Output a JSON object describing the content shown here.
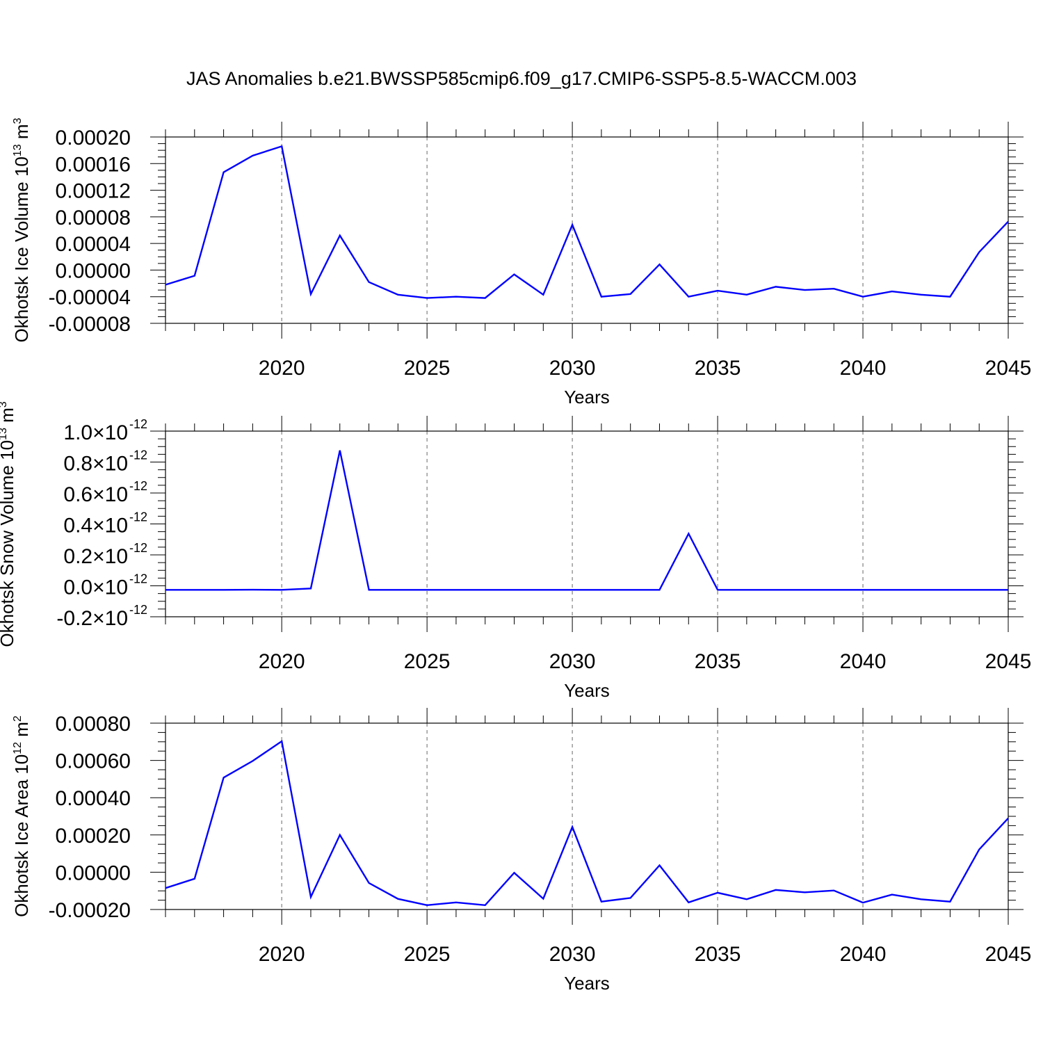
{
  "figure": {
    "title": "JAS Anomalies b.e21.BWSSP585cmip6.f09_g17.CMIP6-SSP5-8.5-WACCM.003"
  },
  "colors": {
    "line": "#0000ff",
    "axis": "#000000",
    "gridline": "#808080"
  },
  "chart_data": [
    {
      "type": "line",
      "xlabel": "Years",
      "ylabel": "Okhotsk Ice Volume 10",
      "ylabel_exp": "13",
      "ylabel_unit": "m",
      "ylabel_unit_exp": "3",
      "xlim": [
        2016,
        2045
      ],
      "ylim": [
        -8e-05,
        0.0002
      ],
      "x_ticks": [
        "2020",
        "2025",
        "2030",
        "2035",
        "2040",
        "2045"
      ],
      "y_ticks": [
        "-0.00008",
        "-0.00004",
        "0.00000",
        "0.00004",
        "0.00008",
        "0.00012",
        "0.00016",
        "0.00020"
      ],
      "y_tick_values": [
        -8e-05,
        -4e-05,
        0.0,
        4e-05,
        8e-05,
        0.00012,
        0.00016,
        0.0002
      ],
      "grid": "vertical dashed at major x ticks",
      "x": [
        2016,
        2017,
        2018,
        2019,
        2020,
        2021,
        2022,
        2023,
        2024,
        2025,
        2026,
        2027,
        2028,
        2029,
        2030,
        2031,
        2032,
        2033,
        2034,
        2035,
        2036,
        2037,
        2038,
        2039,
        2040,
        2041,
        2042,
        2043,
        2044,
        2045
      ],
      "series": [
        {
          "values": [
            -2.2e-05,
            -8.5e-06,
            0.000147,
            0.000172,
            0.000186,
            -3.6e-05,
            5.2e-05,
            -1.8e-05,
            -3.7e-05,
            -4.2e-05,
            -4e-05,
            -4.2e-05,
            -6.5e-06,
            -3.7e-05,
            6.8e-05,
            -4e-05,
            -3.6e-05,
            8.5e-06,
            -4e-05,
            -3.1e-05,
            -3.7e-05,
            -2.5e-05,
            -3e-05,
            -2.8e-05,
            -4e-05,
            -3.2e-05,
            -3.7e-05,
            -4e-05,
            2.7e-05,
            7.3e-05
          ]
        }
      ]
    },
    {
      "type": "line",
      "xlabel": "Years",
      "ylabel": "Okhotsk Snow Volume 10",
      "ylabel_exp": "13",
      "ylabel_unit": "m",
      "ylabel_unit_exp": "3",
      "xlim": [
        2016,
        2045
      ],
      "ylim": [
        -2e-13,
        1e-12
      ],
      "x_ticks": [
        "2020",
        "2025",
        "2030",
        "2035",
        "2040",
        "2045"
      ],
      "y_ticks": [
        "-0.2",
        "0.0",
        "0.2",
        "0.4",
        "0.6",
        "0.8",
        "1.0"
      ],
      "y_tick_values": [
        -2e-13,
        0,
        2e-13,
        4e-13,
        6e-13,
        8e-13,
        1e-12
      ],
      "y_tick_multiplier": "×10",
      "y_tick_multiplier_exp": "-12",
      "grid": "vertical dashed at major x ticks",
      "x": [
        2016,
        2017,
        2018,
        2019,
        2020,
        2021,
        2022,
        2023,
        2024,
        2025,
        2026,
        2027,
        2028,
        2029,
        2030,
        2031,
        2032,
        2033,
        2034,
        2035,
        2036,
        2037,
        2038,
        2039,
        2040,
        2041,
        2042,
        2043,
        2044,
        2045
      ],
      "series": [
        {
          "values": [
            -2.6e-14,
            -2.6e-14,
            -2.6e-14,
            -2.5e-14,
            -2.6e-14,
            -1.7e-14,
            8.75e-13,
            -2.6e-14,
            -2.6e-14,
            -2.6e-14,
            -2.6e-14,
            -2.6e-14,
            -2.6e-14,
            -2.6e-14,
            -2.6e-14,
            -2.6e-14,
            -2.6e-14,
            -2.6e-14,
            3.37e-13,
            -2.6e-14,
            -2.6e-14,
            -2.6e-14,
            -2.6e-14,
            -2.6e-14,
            -2.6e-14,
            -2.6e-14,
            -2.6e-14,
            -2.6e-14,
            -2.6e-14,
            -2.6e-14
          ]
        }
      ]
    },
    {
      "type": "line",
      "xlabel": "Years",
      "ylabel": "Okhotsk Ice Area 10",
      "ylabel_exp": "12",
      "ylabel_unit": "m",
      "ylabel_unit_exp": "2",
      "xlim": [
        2016,
        2045
      ],
      "ylim": [
        -0.0002,
        0.0008
      ],
      "x_ticks": [
        "2020",
        "2025",
        "2030",
        "2035",
        "2040",
        "2045"
      ],
      "y_ticks": [
        "-0.00020",
        "0.00000",
        "0.00020",
        "0.00040",
        "0.00060",
        "0.00080"
      ],
      "y_tick_values": [
        -0.0002,
        0.0,
        0.0002,
        0.0004,
        0.0006,
        0.0008
      ],
      "grid": "vertical dashed at major x ticks",
      "x": [
        2016,
        2017,
        2018,
        2019,
        2020,
        2021,
        2022,
        2023,
        2024,
        2025,
        2026,
        2027,
        2028,
        2029,
        2030,
        2031,
        2032,
        2033,
        2034,
        2035,
        2036,
        2037,
        2038,
        2039,
        2040,
        2041,
        2042,
        2043,
        2044,
        2045
      ],
      "series": [
        {
          "values": [
            -8.5e-05,
            -3.5e-05,
            0.000508,
            0.000597,
            0.000703,
            -0.000133,
            0.0002,
            -5.8e-05,
            -0.000143,
            -0.000177,
            -0.000162,
            -0.000177,
            -3e-06,
            -0.000142,
            0.000243,
            -0.000158,
            -0.000138,
            3.7e-05,
            -0.000162,
            -0.00011,
            -0.000145,
            -9.5e-05,
            -0.000108,
            -9.8e-05,
            -0.000163,
            -0.00012,
            -0.000145,
            -0.000158,
            0.000122,
            0.00029
          ]
        }
      ]
    }
  ]
}
